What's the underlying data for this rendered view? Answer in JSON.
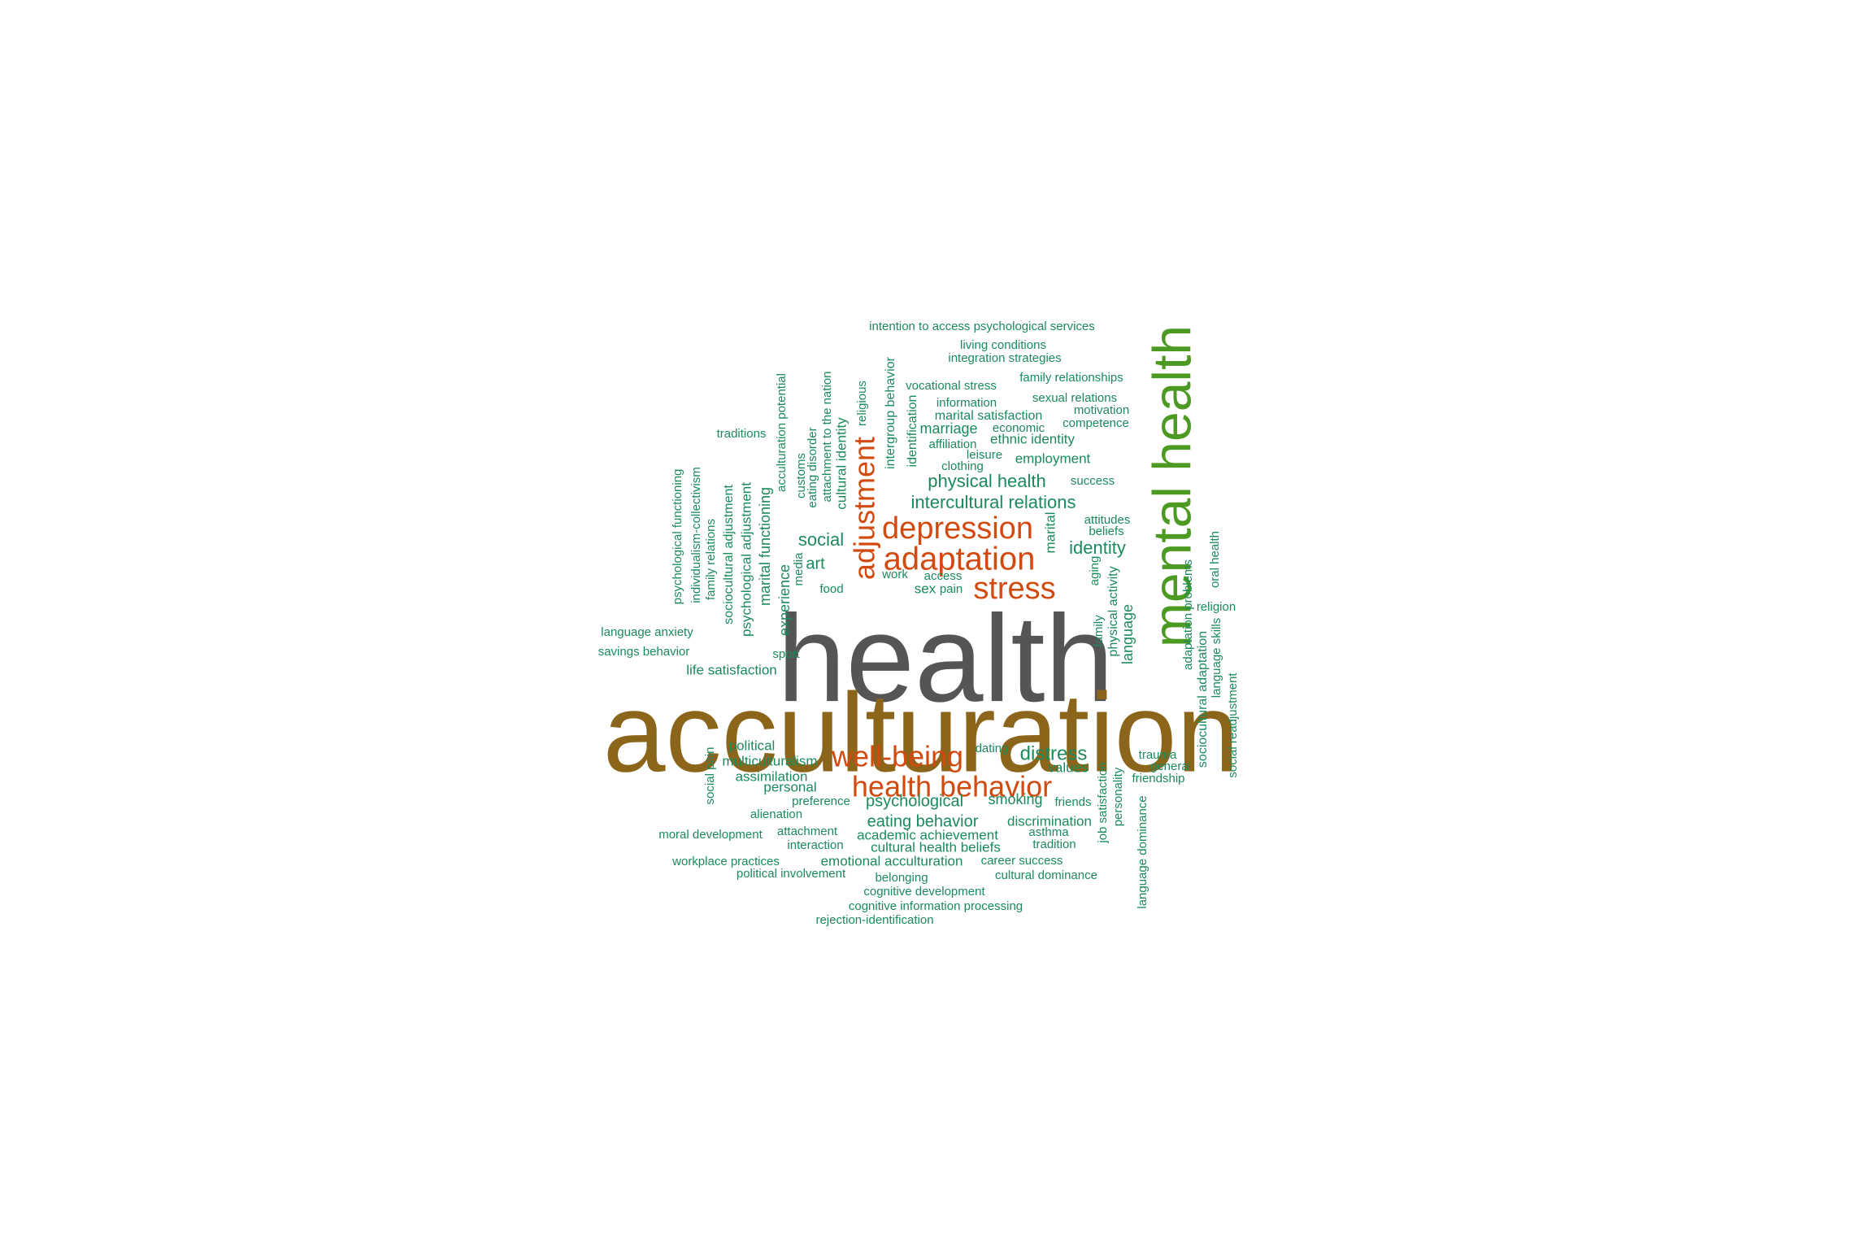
{
  "colors": {
    "green": "#1b8a5c",
    "orange": "#d14a10",
    "gray": "#555555",
    "brown": "#8b6519",
    "lime": "#4c9a22",
    "background": "#ffffff"
  },
  "words": [
    {
      "text": "health",
      "color": "gray"
    },
    {
      "text": "acculturation",
      "color": "brown"
    },
    {
      "text": "mental health",
      "color": "lime"
    },
    {
      "text": "depression",
      "color": "orange"
    },
    {
      "text": "adaptation",
      "color": "orange"
    },
    {
      "text": "stress",
      "color": "orange"
    },
    {
      "text": "adjustment",
      "color": "orange"
    },
    {
      "text": "well-being",
      "color": "orange"
    },
    {
      "text": "health behavior",
      "color": "orange"
    },
    {
      "text": "intention to access psychological services",
      "color": "green"
    },
    {
      "text": "living conditions",
      "color": "green"
    },
    {
      "text": "integration strategies",
      "color": "green"
    },
    {
      "text": "family relationships",
      "color": "green"
    },
    {
      "text": "vocational stress",
      "color": "green"
    },
    {
      "text": "sexual relations",
      "color": "green"
    },
    {
      "text": "information",
      "color": "green"
    },
    {
      "text": "motivation",
      "color": "green"
    },
    {
      "text": "marital satisfaction",
      "color": "green"
    },
    {
      "text": "competence",
      "color": "green"
    },
    {
      "text": "marriage",
      "color": "green"
    },
    {
      "text": "economic",
      "color": "green"
    },
    {
      "text": "ethnic identity",
      "color": "green"
    },
    {
      "text": "affiliation",
      "color": "green"
    },
    {
      "text": "leisure",
      "color": "green"
    },
    {
      "text": "employment",
      "color": "green"
    },
    {
      "text": "clothing",
      "color": "green"
    },
    {
      "text": "physical health",
      "color": "green"
    },
    {
      "text": "success",
      "color": "green"
    },
    {
      "text": "intercultural relations",
      "color": "green"
    },
    {
      "text": "traditions",
      "color": "green"
    },
    {
      "text": "attitudes",
      "color": "green"
    },
    {
      "text": "beliefs",
      "color": "green"
    },
    {
      "text": "identity",
      "color": "green"
    },
    {
      "text": "social",
      "color": "green"
    },
    {
      "text": "art",
      "color": "green"
    },
    {
      "text": "work",
      "color": "green"
    },
    {
      "text": "access",
      "color": "green"
    },
    {
      "text": "sex",
      "color": "green"
    },
    {
      "text": "pain",
      "color": "green"
    },
    {
      "text": "food",
      "color": "green"
    },
    {
      "text": "religion",
      "color": "green"
    },
    {
      "text": "language anxiety",
      "color": "green"
    },
    {
      "text": "savings behavior",
      "color": "green"
    },
    {
      "text": "sport",
      "color": "green"
    },
    {
      "text": "life satisfaction",
      "color": "green"
    },
    {
      "text": "political",
      "color": "green"
    },
    {
      "text": "dating",
      "color": "green"
    },
    {
      "text": "distress",
      "color": "green"
    },
    {
      "text": "trauma",
      "color": "green"
    },
    {
      "text": "multiculturalism",
      "color": "green"
    },
    {
      "text": "values",
      "color": "green"
    },
    {
      "text": "general",
      "color": "green"
    },
    {
      "text": "assimilation",
      "color": "green"
    },
    {
      "text": "friendship",
      "color": "green"
    },
    {
      "text": "personal",
      "color": "green"
    },
    {
      "text": "preference",
      "color": "green"
    },
    {
      "text": "psychological",
      "color": "green"
    },
    {
      "text": "smoking",
      "color": "green"
    },
    {
      "text": "friends",
      "color": "green"
    },
    {
      "text": "alienation",
      "color": "green"
    },
    {
      "text": "eating behavior",
      "color": "green"
    },
    {
      "text": "discrimination",
      "color": "green"
    },
    {
      "text": "moral development",
      "color": "green"
    },
    {
      "text": "attachment",
      "color": "green"
    },
    {
      "text": "academic achievement",
      "color": "green"
    },
    {
      "text": "asthma",
      "color": "green"
    },
    {
      "text": "interaction",
      "color": "green"
    },
    {
      "text": "cultural health beliefs",
      "color": "green"
    },
    {
      "text": "tradition",
      "color": "green"
    },
    {
      "text": "workplace practices",
      "color": "green"
    },
    {
      "text": "emotional acculturation",
      "color": "green"
    },
    {
      "text": "career success",
      "color": "green"
    },
    {
      "text": "political involvement",
      "color": "green"
    },
    {
      "text": "belonging",
      "color": "green"
    },
    {
      "text": "cultural dominance",
      "color": "green"
    },
    {
      "text": "cognitive development",
      "color": "green"
    },
    {
      "text": "cognitive information processing",
      "color": "green"
    },
    {
      "text": "rejection-identification",
      "color": "green"
    },
    {
      "text": "psychological functioning",
      "color": "green"
    },
    {
      "text": "individualism-collectivism",
      "color": "green"
    },
    {
      "text": "family relations",
      "color": "green"
    },
    {
      "text": "sociocultural adjustment",
      "color": "green"
    },
    {
      "text": "psychological adjustment",
      "color": "green"
    },
    {
      "text": "marital functioning",
      "color": "green"
    },
    {
      "text": "acculturation potential",
      "color": "green"
    },
    {
      "text": "experience",
      "color": "green"
    },
    {
      "text": "media",
      "color": "green"
    },
    {
      "text": "customs",
      "color": "green"
    },
    {
      "text": "eating disorder",
      "color": "green"
    },
    {
      "text": "attachment to the nation",
      "color": "green"
    },
    {
      "text": "cultural identity",
      "color": "green"
    },
    {
      "text": "religious",
      "color": "green"
    },
    {
      "text": "intergroup behavior",
      "color": "green"
    },
    {
      "text": "identification",
      "color": "green"
    },
    {
      "text": "marital",
      "color": "green"
    },
    {
      "text": "aging",
      "color": "green"
    },
    {
      "text": "family",
      "color": "green"
    },
    {
      "text": "physical activity",
      "color": "green"
    },
    {
      "text": "language",
      "color": "green"
    },
    {
      "text": "adaptation problems",
      "color": "green"
    },
    {
      "text": "sociocultural adaptation",
      "color": "green"
    },
    {
      "text": "language skills",
      "color": "green"
    },
    {
      "text": "oral health",
      "color": "green"
    },
    {
      "text": "social readjustment",
      "color": "green"
    },
    {
      "text": "social pain",
      "color": "green"
    },
    {
      "text": "job satisfaction",
      "color": "green"
    },
    {
      "text": "personality",
      "color": "green"
    },
    {
      "text": "language dominance",
      "color": "green"
    }
  ]
}
